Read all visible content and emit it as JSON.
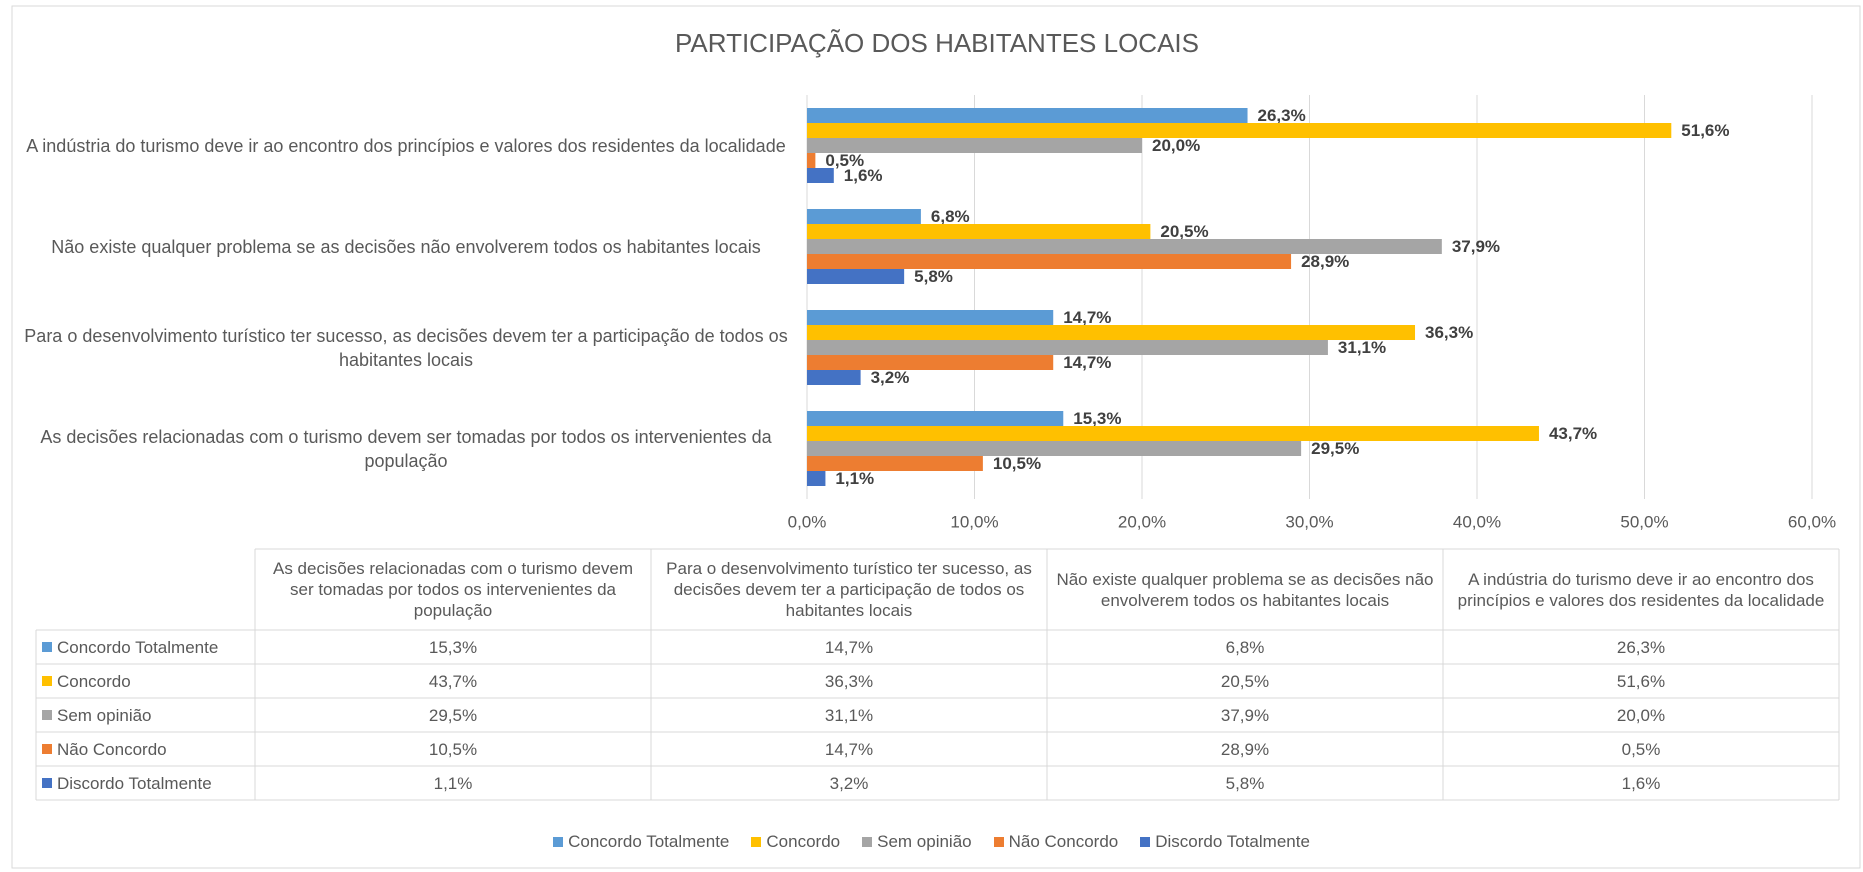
{
  "chart_data": {
    "type": "bar",
    "orientation": "horizontal",
    "title": "PARTICIPAÇÃO DOS HABITANTES LOCAIS",
    "categories": [
      "As decisões relacionadas com o turismo devem ser tomadas por todos os intervenientes da população",
      "Para o desenvolvimento turístico ter sucesso, as decisões devem ter a participação de todos os habitantes locais",
      "Não existe qualquer problema se as decisões não envolverem todos os habitantes locais",
      "A indústria do turismo deve ir ao encontro dos princípios e valores dos residentes da localidade"
    ],
    "series": [
      {
        "name": "Concordo Totalmente",
        "color": "#5b9bd5",
        "values": [
          15.3,
          14.7,
          6.8,
          26.3
        ],
        "value_labels": [
          "15,3%",
          "14,7%",
          "6,8%",
          "26,3%"
        ]
      },
      {
        "name": "Concordo",
        "color": "#ffc000",
        "values": [
          43.7,
          36.3,
          20.5,
          51.6
        ],
        "value_labels": [
          "43,7%",
          "36,3%",
          "20,5%",
          "51,6%"
        ]
      },
      {
        "name": "Sem opinião",
        "color": "#a5a5a5",
        "values": [
          29.5,
          31.1,
          37.9,
          20.0
        ],
        "value_labels": [
          "29,5%",
          "31,1%",
          "37,9%",
          "20,0%"
        ]
      },
      {
        "name": "Não Concordo",
        "color": "#ed7d31",
        "values": [
          10.5,
          14.7,
          28.9,
          0.5
        ],
        "value_labels": [
          "10,5%",
          "14,7%",
          "28,9%",
          "0,5%"
        ]
      },
      {
        "name": "Discordo Totalmente",
        "color": "#4472c4",
        "values": [
          1.1,
          3.2,
          5.8,
          1.6
        ],
        "value_labels": [
          "1,1%",
          "3,2%",
          "5,8%",
          "1,6%"
        ]
      }
    ],
    "xlim": [
      0,
      60
    ],
    "xticks": [
      {
        "value": 0,
        "label": "0,0%"
      },
      {
        "value": 10,
        "label": "10,0%"
      },
      {
        "value": 20,
        "label": "20,0%"
      },
      {
        "value": 30,
        "label": "30,0%"
      },
      {
        "value": 40,
        "label": "40,0%"
      },
      {
        "value": 50,
        "label": "50,0%"
      },
      {
        "value": 60,
        "label": "60,0%"
      }
    ],
    "grid": true,
    "legend": "bottom",
    "data_table": true
  }
}
